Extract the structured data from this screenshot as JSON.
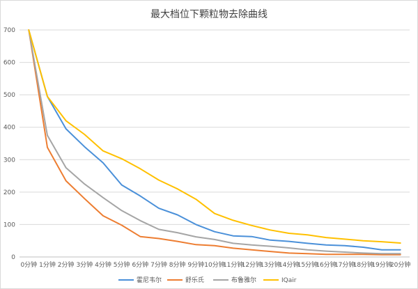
{
  "chart_data": {
    "type": "line",
    "title": "最大档位下颗粒物去除曲线",
    "xlabel": "",
    "ylabel": "",
    "ylim": [
      0,
      700
    ],
    "yticks": [
      0,
      100,
      200,
      300,
      400,
      500,
      600,
      700
    ],
    "grid": true,
    "legend_position": "bottom",
    "categories": [
      "0分钟",
      "1分钟",
      "2分钟",
      "3分钟",
      "4分钟",
      "5分钟",
      "6分钟",
      "7分钟",
      "8分钟",
      "9分钟",
      "10分钟",
      "11分钟",
      "12分钟",
      "13分钟",
      "14分钟",
      "15分钟",
      "16分钟",
      "17分钟",
      "18分钟",
      "19分钟",
      "20分钟"
    ],
    "series": [
      {
        "name": "霍尼韦尔",
        "color": "#4a90d9",
        "values": [
          700,
          495,
          395,
          340,
          290,
          222,
          188,
          150,
          130,
          100,
          78,
          65,
          63,
          52,
          48,
          42,
          37,
          35,
          30,
          22,
          22
        ]
      },
      {
        "name": "舒乐氏",
        "color": "#ed7d31",
        "values": [
          700,
          338,
          235,
          180,
          127,
          98,
          63,
          57,
          48,
          38,
          35,
          27,
          22,
          17,
          12,
          10,
          8,
          8,
          8,
          7,
          7
        ]
      },
      {
        "name": "布鲁雅尔",
        "color": "#a5a5a5",
        "values": [
          700,
          375,
          275,
          225,
          183,
          143,
          112,
          85,
          75,
          62,
          54,
          42,
          37,
          33,
          28,
          22,
          18,
          15,
          12,
          10,
          10
        ]
      },
      {
        "name": "IQair",
        "color": "#ffc000",
        "values": [
          700,
          495,
          420,
          378,
          327,
          303,
          272,
          237,
          210,
          178,
          134,
          113,
          97,
          83,
          73,
          68,
          60,
          55,
          50,
          47,
          43
        ]
      }
    ]
  }
}
